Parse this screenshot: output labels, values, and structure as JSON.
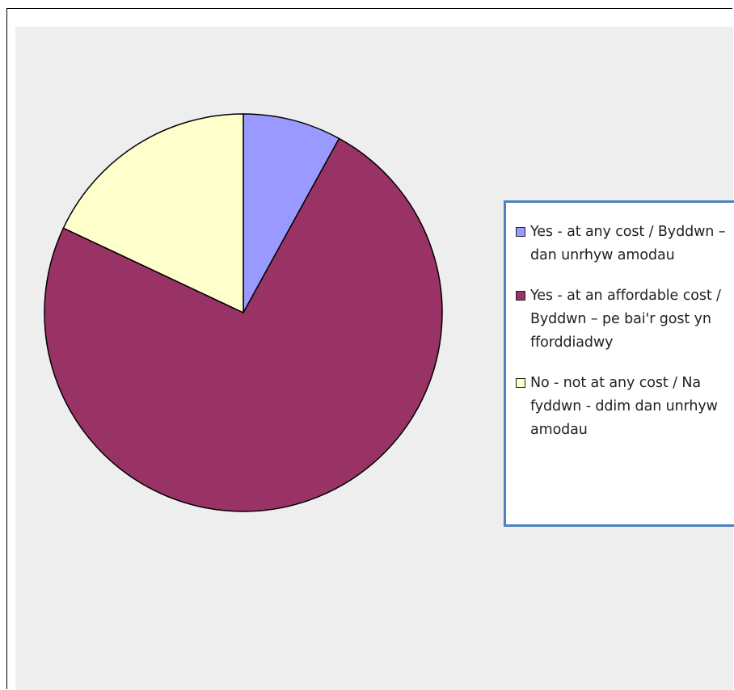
{
  "chart_data": {
    "type": "pie",
    "title": "",
    "slices": [
      {
        "label": "Yes - at any cost / Byddwn – dan unrhyw amodau",
        "value": 8,
        "color": "#9999ff"
      },
      {
        "label": "Yes - at an affordable cost / Byddwn – pe bai'r gost yn fforddiadwy",
        "value": 74,
        "color": "#993366"
      },
      {
        "label": "No - not at any cost / Na fyddwn - ddim dan unrhyw amodau",
        "value": 18,
        "color": "#ffffcc"
      }
    ],
    "legend_position": "right"
  }
}
